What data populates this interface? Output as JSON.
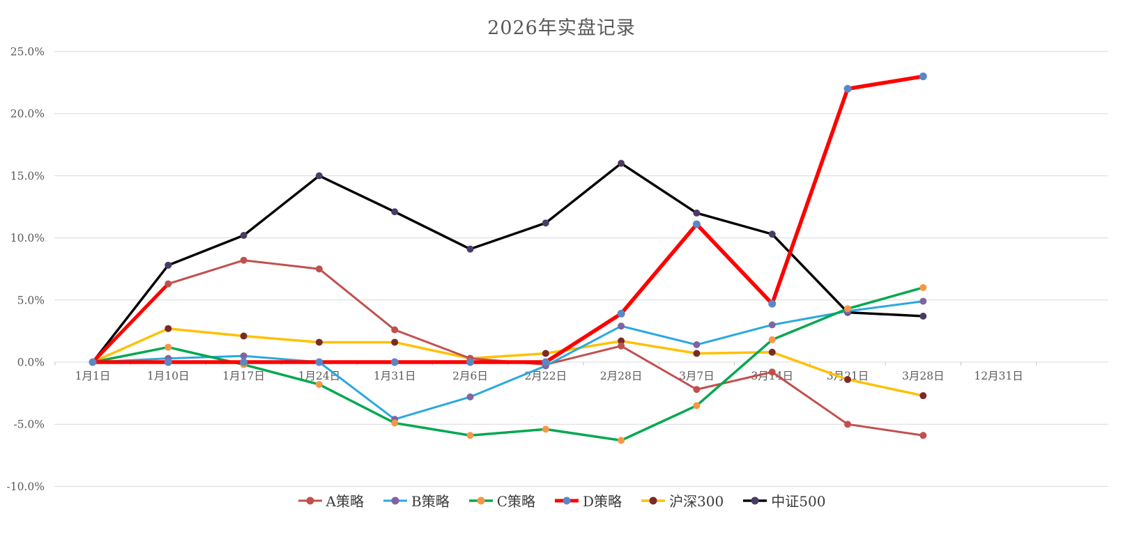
{
  "chart_data": {
    "type": "line",
    "title": "2026年实盘记录",
    "categories": [
      "1月1日",
      "1月10日",
      "1月17日",
      "1月24日",
      "1月31日",
      "2月6日",
      "2月22日",
      "2月28日",
      "3月7日",
      "3月14日",
      "3月21日",
      "3月28日",
      "12月31日"
    ],
    "y_ticks": [
      "25.0%",
      "20.0%",
      "15.0%",
      "10.0%",
      "5.0%",
      "0.0%",
      "-5.0%",
      "-10.0%"
    ],
    "y_axis": {
      "min": -10,
      "max": 25,
      "step": 5,
      "unit": "percent"
    },
    "grid": "horizontal",
    "legend_position": "bottom",
    "series": [
      {
        "name": "A策略",
        "line_color": "#C0504D",
        "marker_color": "#C0504D",
        "line_width": 3,
        "first_segment_color": "#FF0000",
        "first_segment_width": 5,
        "values": [
          0.0,
          6.3,
          8.2,
          7.5,
          2.6,
          0.3,
          -0.2,
          1.3,
          -2.2,
          -0.8,
          -5.0,
          -5.9,
          null
        ]
      },
      {
        "name": "B策略",
        "line_color": "#29A8E0",
        "marker_color": "#8064A2",
        "line_width": 3,
        "values": [
          0.0,
          0.3,
          0.5,
          0.0,
          -4.6,
          -2.8,
          -0.3,
          2.9,
          1.4,
          3.0,
          4.1,
          4.9,
          null
        ]
      },
      {
        "name": "C策略",
        "line_color": "#00A84F",
        "marker_color": "#F79646",
        "line_width": 3.5,
        "values": [
          0.0,
          1.2,
          -0.2,
          -1.8,
          -4.9,
          -5.9,
          -5.4,
          -6.3,
          -3.5,
          1.8,
          4.3,
          6.0,
          null
        ]
      },
      {
        "name": "D策略",
        "line_color": "#FF0000",
        "marker_color": "#5B87C5",
        "line_width": 5.5,
        "values": [
          0.0,
          0.0,
          0.0,
          0.0,
          0.0,
          0.0,
          0.0,
          3.9,
          11.1,
          4.7,
          22.0,
          23.0,
          null
        ]
      },
      {
        "name": "沪深300",
        "line_color": "#FFC000",
        "marker_color": "#7B2A26",
        "line_width": 3.5,
        "values": [
          0.0,
          2.7,
          2.1,
          1.6,
          1.6,
          0.3,
          0.7,
          1.7,
          0.7,
          0.8,
          -1.4,
          -2.7,
          null
        ]
      },
      {
        "name": "中证500",
        "line_color": "#000000",
        "marker_color": "#4A3C64",
        "line_width": 3.5,
        "values": [
          0.0,
          7.8,
          10.2,
          15.0,
          12.1,
          9.1,
          11.2,
          16.0,
          12.0,
          10.3,
          4.0,
          3.7,
          null
        ]
      }
    ],
    "draw_order": [
      "中证500",
      "沪深300",
      "A策略",
      "B策略",
      "C策略",
      "D策略"
    ],
    "colors": {
      "gridline": "#D9D9D9",
      "axis": "#BFBFBF",
      "title_text": "#595959",
      "tick_text": "#595959",
      "legend_text": "#3b3b3b",
      "background": "#FFFFFF"
    }
  }
}
